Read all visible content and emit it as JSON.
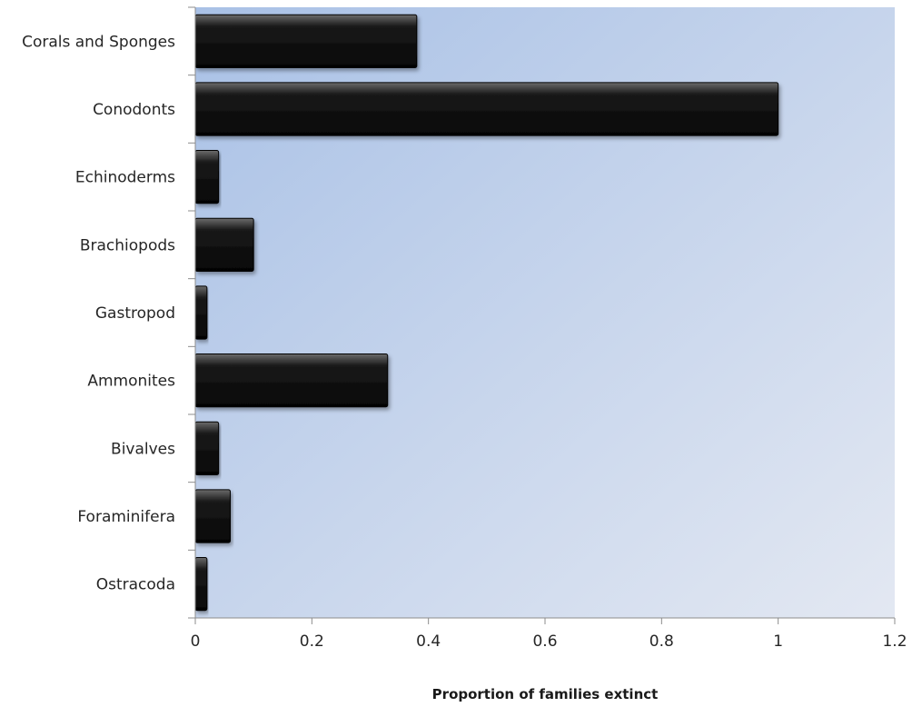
{
  "chart_data": {
    "type": "bar",
    "orientation": "horizontal",
    "categories": [
      "Corals and Sponges",
      "Conodonts",
      "Echinoderms",
      "Brachiopods",
      "Gastropod",
      "Ammonites",
      "Bivalves",
      "Foraminifera",
      "Ostracoda"
    ],
    "values": [
      0.38,
      1.0,
      0.04,
      0.1,
      0.02,
      0.33,
      0.04,
      0.06,
      0.02
    ],
    "xlim": [
      0,
      1.2
    ],
    "xticks": [
      0,
      0.2,
      0.4,
      0.6,
      0.8,
      1,
      1.2
    ],
    "xtick_labels": [
      "0",
      "0.2",
      "0.4",
      "0.6",
      "0.8",
      "1",
      "1.2"
    ],
    "xlabel": "Proportion of families extinct",
    "ylabel": "",
    "title": "",
    "grid": false,
    "legend": "none",
    "colors": {
      "bar": "#050505",
      "bar_highlight": "#6b6b6b",
      "plot_bg_start": "#a9c1e6",
      "plot_bg_end": "#e3e8f2",
      "axis": "#8c8c8c"
    }
  }
}
